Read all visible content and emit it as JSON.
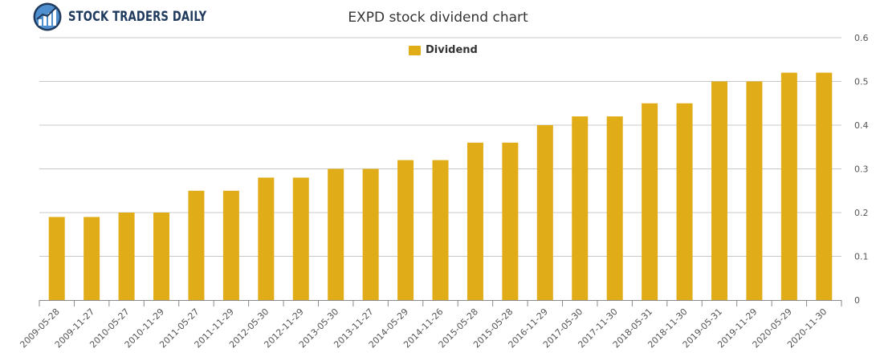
{
  "brand": {
    "name": "STOCK TRADERS DAILY",
    "logo_icon": "globe-chart-icon"
  },
  "chart_data": {
    "type": "bar",
    "title": "EXPD stock dividend chart",
    "xlabel": "",
    "ylabel": "",
    "categories": [
      "2009-05-28",
      "2009-11-27",
      "2010-05-27",
      "2010-11-29",
      "2011-05-27",
      "2011-11-29",
      "2012-05-30",
      "2012-11-29",
      "2013-05-30",
      "2013-11-27",
      "2014-05-29",
      "2014-11-26",
      "2015-05-28",
      "2015-05-28",
      "2016-11-29",
      "2017-05-30",
      "2017-11-30",
      "2018-05-31",
      "2018-11-30",
      "2019-05-31",
      "2019-11-29",
      "2020-05-29",
      "2020-11-30"
    ],
    "series": [
      {
        "name": "Dividend",
        "color": "#e0ac17",
        "values": [
          0.19,
          0.19,
          0.2,
          0.2,
          0.25,
          0.25,
          0.28,
          0.28,
          0.3,
          0.3,
          0.32,
          0.32,
          0.36,
          0.36,
          0.4,
          0.42,
          0.42,
          0.45,
          0.45,
          0.5,
          0.5,
          0.52,
          0.52
        ]
      }
    ],
    "ylim": [
      0,
      0.6
    ],
    "yticks": [
      "0",
      "0.1",
      "0.2",
      "0.3",
      "0.4",
      "0.5",
      "0.6"
    ],
    "ytick_values": [
      0,
      0.1,
      0.2,
      0.3,
      0.4,
      0.5,
      0.6
    ],
    "y_axis_side": "right",
    "grid": true,
    "legend_position": "top-center"
  }
}
